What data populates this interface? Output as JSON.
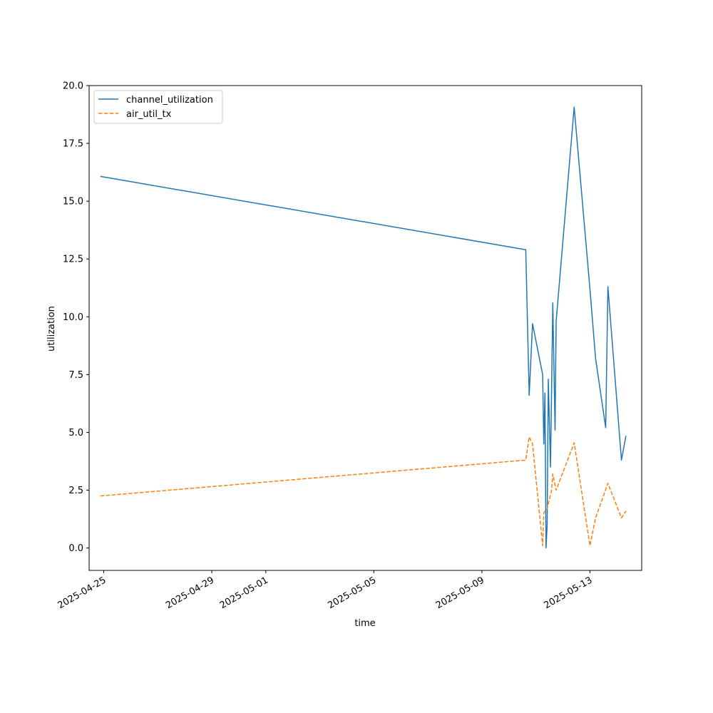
{
  "chart_data": {
    "type": "line",
    "xlabel": "time",
    "ylabel": "utilization",
    "ylim": [
      -0.97,
      20.0
    ],
    "yticks": [
      "0.0",
      "2.5",
      "5.0",
      "7.5",
      "10.0",
      "12.5",
      "15.0",
      "17.5",
      "20.0"
    ],
    "xlim": [
      "2025-04-24T11:00",
      "2025-05-14T22:00"
    ],
    "xticks": [
      "2025-04-25",
      "2025-04-29",
      "2025-05-01",
      "2025-05-05",
      "2025-05-09",
      "2025-05-13"
    ],
    "grid": false,
    "legend_position": "top-left",
    "series": [
      {
        "name": "channel_utilization",
        "color": "#1f77b4",
        "style": "solid",
        "points": [
          [
            "2025-04-24T21:00",
            16.07
          ],
          [
            "2025-05-10T15:00",
            12.9
          ],
          [
            "2025-05-10T18:00",
            6.6
          ],
          [
            "2025-05-10T21:00",
            9.7
          ],
          [
            "2025-05-11T06:00",
            7.5
          ],
          [
            "2025-05-11T07:00",
            4.5
          ],
          [
            "2025-05-11T08:00",
            6.7
          ],
          [
            "2025-05-11T09:00",
            0.0
          ],
          [
            "2025-05-11T10:00",
            1.0
          ],
          [
            "2025-05-11T11:00",
            7.3
          ],
          [
            "2025-05-11T13:00",
            3.5
          ],
          [
            "2025-05-11T15:00",
            10.6
          ],
          [
            "2025-05-11T17:00",
            5.1
          ],
          [
            "2025-05-11T18:00",
            9.8
          ],
          [
            "2025-05-12T10:00",
            19.07
          ],
          [
            "2025-05-13T00:00",
            11.2
          ],
          [
            "2025-05-13T05:00",
            8.2
          ],
          [
            "2025-05-13T14:00",
            5.2
          ],
          [
            "2025-05-13T16:00",
            11.3
          ],
          [
            "2025-05-14T04:00",
            3.8
          ],
          [
            "2025-05-14T08:00",
            4.85
          ]
        ]
      },
      {
        "name": "air_util_tx",
        "color": "#ff7f0e",
        "style": "dashed",
        "points": [
          [
            "2025-04-24T21:00",
            2.25
          ],
          [
            "2025-05-10T15:00",
            3.8
          ],
          [
            "2025-05-10T18:00",
            4.8
          ],
          [
            "2025-05-10T21:00",
            4.5
          ],
          [
            "2025-05-11T06:00",
            0.1
          ],
          [
            "2025-05-11T07:00",
            1.5
          ],
          [
            "2025-05-11T08:00",
            1.6
          ],
          [
            "2025-05-11T10:00",
            1.7
          ],
          [
            "2025-05-11T14:00",
            2.5
          ],
          [
            "2025-05-11T15:00",
            3.2
          ],
          [
            "2025-05-11T18:00",
            2.5
          ],
          [
            "2025-05-12T10:00",
            4.55
          ],
          [
            "2025-05-13T00:00",
            0.1
          ],
          [
            "2025-05-13T05:00",
            1.3
          ],
          [
            "2025-05-13T16:00",
            2.8
          ],
          [
            "2025-05-14T04:00",
            1.3
          ],
          [
            "2025-05-14T08:00",
            1.6
          ]
        ]
      }
    ]
  }
}
